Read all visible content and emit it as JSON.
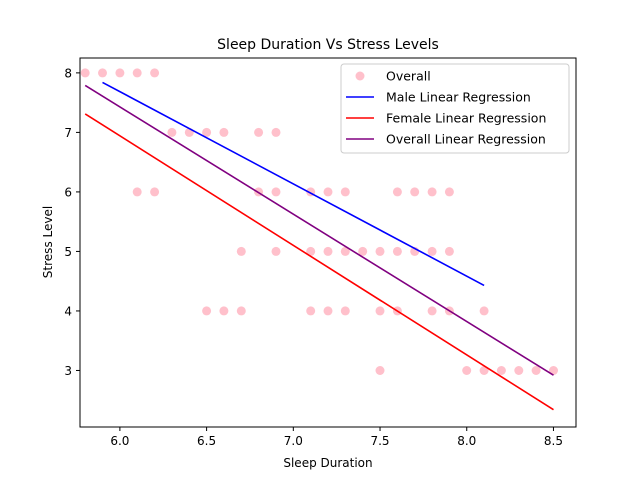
{
  "chart_data": {
    "type": "scatter",
    "title": "Sleep Duration Vs Stress Levels",
    "xlabel": "Sleep Duration",
    "ylabel": "Stress Level",
    "xlim": [
      5.77,
      8.63
    ],
    "ylim": [
      2.05,
      8.25
    ],
    "xticks": [
      6.0,
      6.5,
      7.0,
      7.5,
      8.0,
      8.5
    ],
    "xtick_labels": [
      "6.0",
      "6.5",
      "7.0",
      "7.5",
      "8.0",
      "8.5"
    ],
    "yticks": [
      3,
      4,
      5,
      6,
      7,
      8
    ],
    "ytick_labels": [
      "3",
      "4",
      "5",
      "6",
      "7",
      "8"
    ],
    "grid": false,
    "legend_position": "top-right",
    "scatter": {
      "name": "Overall",
      "color": "#ffc0cb",
      "points": [
        [
          5.8,
          8
        ],
        [
          5.9,
          8
        ],
        [
          6.0,
          8
        ],
        [
          6.1,
          8
        ],
        [
          6.2,
          8
        ],
        [
          6.3,
          7
        ],
        [
          6.4,
          7
        ],
        [
          6.5,
          7
        ],
        [
          6.6,
          7
        ],
        [
          6.8,
          7
        ],
        [
          6.9,
          7
        ],
        [
          6.1,
          6
        ],
        [
          6.2,
          6
        ],
        [
          6.8,
          6
        ],
        [
          6.9,
          6
        ],
        [
          7.1,
          6
        ],
        [
          7.2,
          6
        ],
        [
          7.3,
          6
        ],
        [
          7.6,
          6
        ],
        [
          7.7,
          6
        ],
        [
          7.8,
          6
        ],
        [
          7.9,
          6
        ],
        [
          6.7,
          5
        ],
        [
          6.9,
          5
        ],
        [
          7.1,
          5
        ],
        [
          7.2,
          5
        ],
        [
          7.3,
          5
        ],
        [
          7.4,
          5
        ],
        [
          7.5,
          5
        ],
        [
          7.6,
          5
        ],
        [
          7.7,
          5
        ],
        [
          7.8,
          5
        ],
        [
          7.9,
          5
        ],
        [
          6.5,
          4
        ],
        [
          6.6,
          4
        ],
        [
          6.7,
          4
        ],
        [
          7.1,
          4
        ],
        [
          7.2,
          4
        ],
        [
          7.3,
          4
        ],
        [
          7.5,
          4
        ],
        [
          7.6,
          4
        ],
        [
          7.8,
          4
        ],
        [
          7.9,
          4
        ],
        [
          8.1,
          4
        ],
        [
          7.5,
          3
        ],
        [
          8.0,
          3
        ],
        [
          8.1,
          3
        ],
        [
          8.2,
          3
        ],
        [
          8.3,
          3
        ],
        [
          8.4,
          3
        ],
        [
          8.5,
          3
        ]
      ]
    },
    "lines": [
      {
        "name": "Male Linear Regression",
        "color": "#0000ff",
        "x": [
          5.9,
          8.1
        ],
        "y": [
          7.84,
          4.43
        ]
      },
      {
        "name": "Female Linear Regression",
        "color": "#ff0000",
        "x": [
          5.8,
          8.5
        ],
        "y": [
          7.31,
          2.34
        ]
      },
      {
        "name": "Overall Linear Regression",
        "color": "#800080",
        "x": [
          5.8,
          8.5
        ],
        "y": [
          7.79,
          2.92
        ]
      }
    ],
    "legend": [
      {
        "label": "Overall",
        "kind": "marker",
        "color": "#ffc0cb"
      },
      {
        "label": "Male Linear Regression",
        "kind": "line",
        "color": "#0000ff"
      },
      {
        "label": "Female Linear Regression",
        "kind": "line",
        "color": "#ff0000"
      },
      {
        "label": "Overall Linear Regression",
        "kind": "line",
        "color": "#800080"
      }
    ]
  }
}
